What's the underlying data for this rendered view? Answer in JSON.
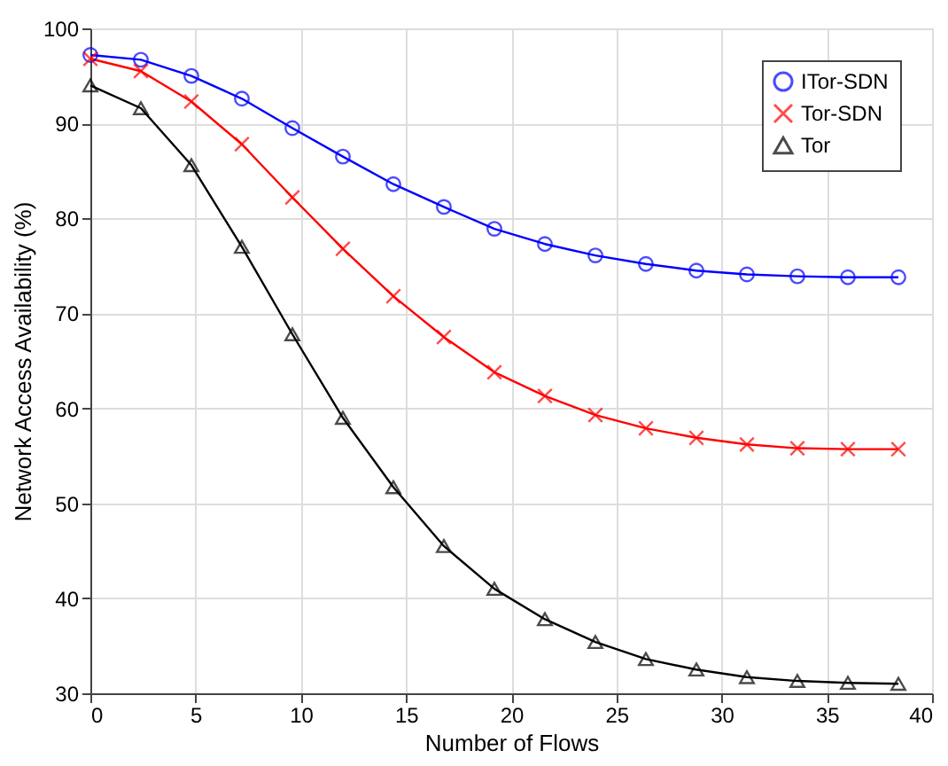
{
  "chart_data": {
    "type": "line",
    "xlabel": "Number of Flows",
    "ylabel": "Network Access Availability (%)",
    "x": [
      0,
      2.4,
      4.8,
      7.2,
      9.6,
      12,
      14.4,
      16.8,
      19.2,
      21.6,
      24,
      26.4,
      28.8,
      31.2,
      33.6,
      36,
      38.4
    ],
    "series": [
      {
        "name": "ITor-SDN",
        "color": "#0000ff",
        "marker": "circle",
        "values": [
          97.2,
          96.7,
          95.0,
          92.6,
          89.5,
          86.5,
          83.6,
          81.2,
          78.9,
          77.3,
          76.1,
          75.2,
          74.5,
          74.1,
          73.9,
          73.8,
          73.8
        ]
      },
      {
        "name": "Tor-SDN",
        "color": "#ff0000",
        "marker": "cross",
        "values": [
          96.8,
          95.5,
          92.3,
          87.8,
          82.2,
          76.8,
          71.8,
          67.5,
          63.8,
          61.3,
          59.3,
          57.9,
          56.9,
          56.2,
          55.8,
          55.7,
          55.7
        ]
      },
      {
        "name": "Tor",
        "color": "#000000",
        "marker": "triangle",
        "values": [
          94.0,
          91.6,
          85.6,
          77.0,
          67.8,
          59.0,
          51.7,
          45.5,
          41.0,
          37.8,
          35.4,
          33.6,
          32.5,
          31.7,
          31.3,
          31.1,
          31.0
        ]
      }
    ],
    "xlim": [
      0,
      40
    ],
    "xticks": [
      0,
      5,
      10,
      15,
      20,
      25,
      30,
      35,
      40
    ],
    "ylim": [
      30,
      100
    ],
    "yticks": [
      30,
      40,
      50,
      60,
      70,
      80,
      90,
      100
    ],
    "grid": true,
    "legend": "top right",
    "line_style": "solid"
  }
}
